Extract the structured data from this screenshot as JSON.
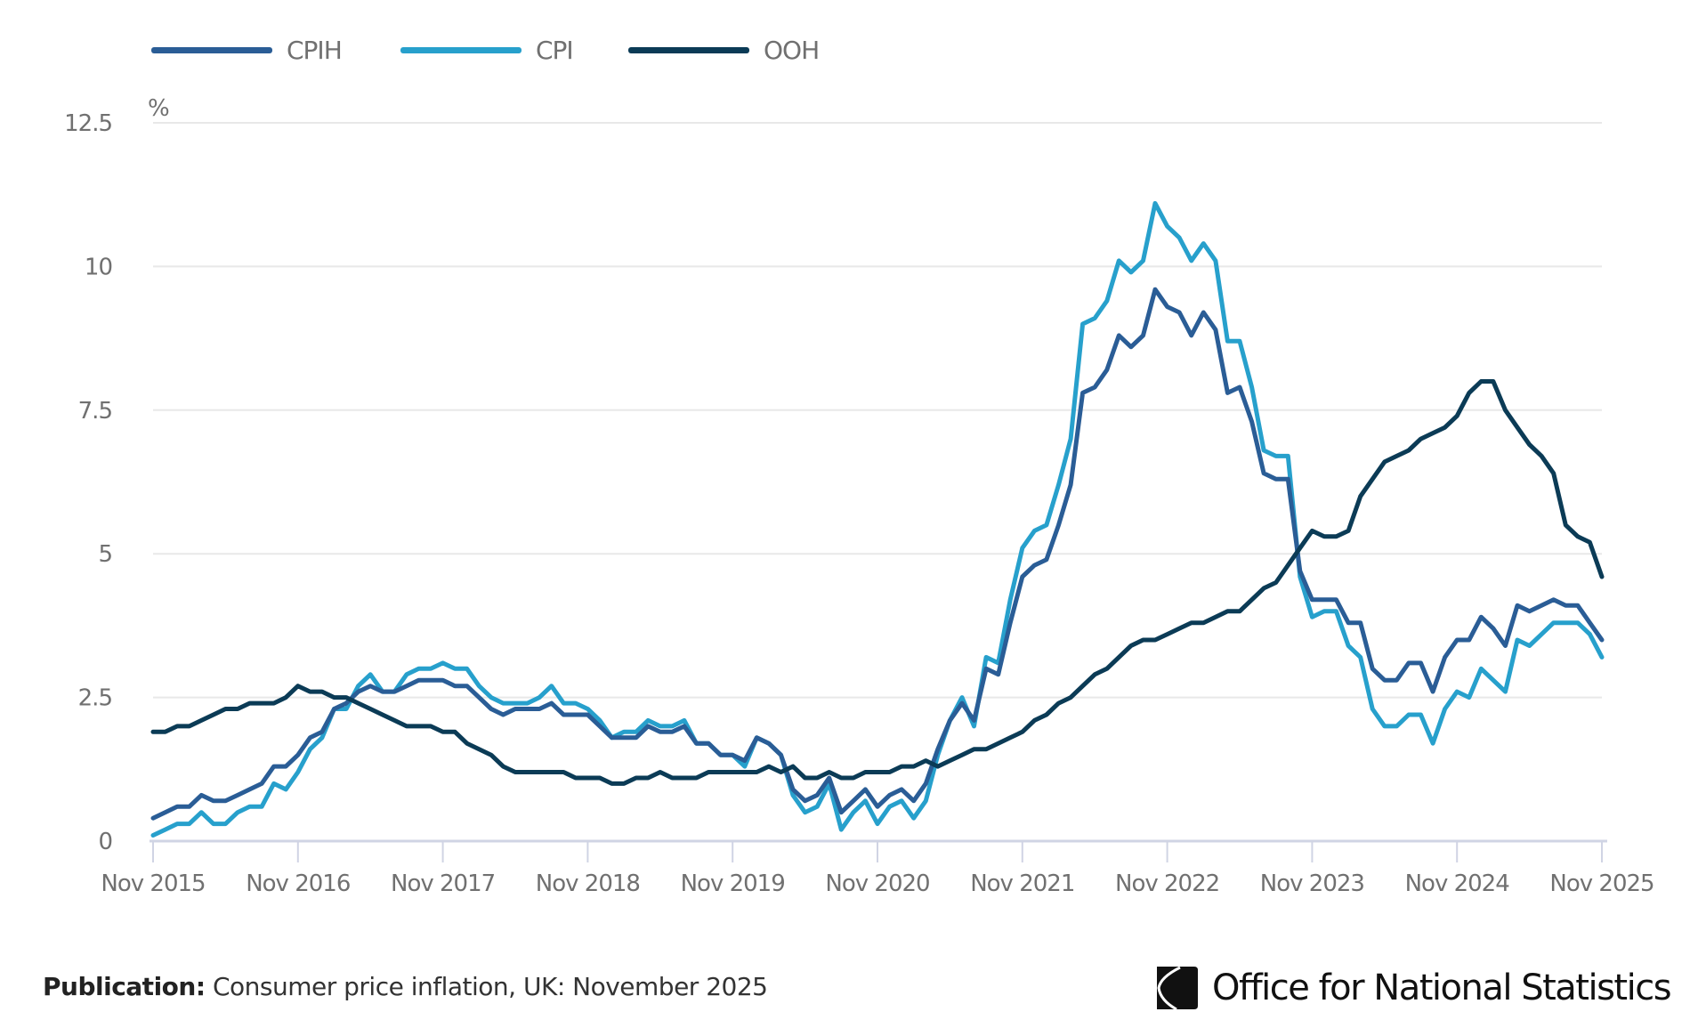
{
  "chart_data": {
    "type": "line",
    "title": "",
    "xlabel": "",
    "ylabel": "%",
    "ylim": [
      0,
      12.5
    ],
    "y_ticks": [
      "0",
      "2.5",
      "5",
      "7.5",
      "10",
      "12.5"
    ],
    "y_tick_values": [
      0,
      2.5,
      5,
      7.5,
      10,
      12.5
    ],
    "x_ticks": [
      "Nov 2015",
      "Nov 2016",
      "Nov 2017",
      "Nov 2018",
      "Nov 2019",
      "Nov 2020",
      "Nov 2021",
      "Nov 2022",
      "Nov 2023",
      "Nov 2024",
      "Nov 2025"
    ],
    "x_range": [
      "2015-11",
      "2025-11"
    ],
    "grid": true,
    "legend_position": "top-left",
    "x": [
      "2015-11",
      "2015-12",
      "2016-01",
      "2016-02",
      "2016-03",
      "2016-04",
      "2016-05",
      "2016-06",
      "2016-07",
      "2016-08",
      "2016-09",
      "2016-10",
      "2016-11",
      "2016-12",
      "2017-01",
      "2017-02",
      "2017-03",
      "2017-04",
      "2017-05",
      "2017-06",
      "2017-07",
      "2017-08",
      "2017-09",
      "2017-10",
      "2017-11",
      "2017-12",
      "2018-01",
      "2018-02",
      "2018-03",
      "2018-04",
      "2018-05",
      "2018-06",
      "2018-07",
      "2018-08",
      "2018-09",
      "2018-10",
      "2018-11",
      "2018-12",
      "2019-01",
      "2019-02",
      "2019-03",
      "2019-04",
      "2019-05",
      "2019-06",
      "2019-07",
      "2019-08",
      "2019-09",
      "2019-10",
      "2019-11",
      "2019-12",
      "2020-01",
      "2020-02",
      "2020-03",
      "2020-04",
      "2020-05",
      "2020-06",
      "2020-07",
      "2020-08",
      "2020-09",
      "2020-10",
      "2020-11",
      "2020-12",
      "2021-01",
      "2021-02",
      "2021-03",
      "2021-04",
      "2021-05",
      "2021-06",
      "2021-07",
      "2021-08",
      "2021-09",
      "2021-10",
      "2021-11",
      "2021-12",
      "2022-01",
      "2022-02",
      "2022-03",
      "2022-04",
      "2022-05",
      "2022-06",
      "2022-07",
      "2022-08",
      "2022-09",
      "2022-10",
      "2022-11",
      "2022-12",
      "2023-01",
      "2023-02",
      "2023-03",
      "2023-04",
      "2023-05",
      "2023-06",
      "2023-07",
      "2023-08",
      "2023-09",
      "2023-10",
      "2023-11",
      "2023-12",
      "2024-01",
      "2024-02",
      "2024-03",
      "2024-04",
      "2024-05",
      "2024-06",
      "2024-07",
      "2024-08",
      "2024-09",
      "2024-10",
      "2024-11",
      "2024-12",
      "2025-01",
      "2025-02",
      "2025-03",
      "2025-04",
      "2025-05",
      "2025-06",
      "2025-07",
      "2025-08",
      "2025-09",
      "2025-10",
      "2025-11"
    ],
    "series": [
      {
        "name": "CPIH",
        "color": "#2a5d96",
        "values": [
          0.4,
          0.5,
          0.6,
          0.6,
          0.8,
          0.7,
          0.7,
          0.8,
          0.9,
          1.0,
          1.3,
          1.3,
          1.5,
          1.8,
          1.9,
          2.3,
          2.4,
          2.6,
          2.7,
          2.6,
          2.6,
          2.7,
          2.8,
          2.8,
          2.8,
          2.7,
          2.7,
          2.5,
          2.3,
          2.2,
          2.3,
          2.3,
          2.3,
          2.4,
          2.2,
          2.2,
          2.2,
          2.0,
          1.8,
          1.8,
          1.8,
          2.0,
          1.9,
          1.9,
          2.0,
          1.7,
          1.7,
          1.5,
          1.5,
          1.4,
          1.8,
          1.7,
          1.5,
          0.9,
          0.7,
          0.8,
          1.1,
          0.5,
          0.7,
          0.9,
          0.6,
          0.8,
          0.9,
          0.7,
          1.0,
          1.6,
          2.1,
          2.4,
          2.1,
          3.0,
          2.9,
          3.8,
          4.6,
          4.8,
          4.9,
          5.5,
          6.2,
          7.8,
          7.9,
          8.2,
          8.8,
          8.6,
          8.8,
          9.6,
          9.3,
          9.2,
          8.8,
          9.2,
          8.9,
          7.8,
          7.9,
          7.3,
          6.4,
          6.3,
          6.3,
          4.7,
          4.2,
          4.2,
          4.2,
          3.8,
          3.8,
          3.0,
          2.8,
          2.8,
          3.1,
          3.1,
          2.6,
          3.2,
          3.5,
          3.5,
          3.9,
          3.7,
          3.4,
          4.1,
          4.0,
          4.1,
          4.2,
          4.1,
          4.1,
          3.8,
          3.5
        ]
      },
      {
        "name": "CPI",
        "color": "#27a0cc",
        "values": [
          0.1,
          0.2,
          0.3,
          0.3,
          0.5,
          0.3,
          0.3,
          0.5,
          0.6,
          0.6,
          1.0,
          0.9,
          1.2,
          1.6,
          1.8,
          2.3,
          2.3,
          2.7,
          2.9,
          2.6,
          2.6,
          2.9,
          3.0,
          3.0,
          3.1,
          3.0,
          3.0,
          2.7,
          2.5,
          2.4,
          2.4,
          2.4,
          2.5,
          2.7,
          2.4,
          2.4,
          2.3,
          2.1,
          1.8,
          1.9,
          1.9,
          2.1,
          2.0,
          2.0,
          2.1,
          1.7,
          1.7,
          1.5,
          1.5,
          1.3,
          1.8,
          1.7,
          1.5,
          0.8,
          0.5,
          0.6,
          1.0,
          0.2,
          0.5,
          0.7,
          0.3,
          0.6,
          0.7,
          0.4,
          0.7,
          1.5,
          2.1,
          2.5,
          2.0,
          3.2,
          3.1,
          4.2,
          5.1,
          5.4,
          5.5,
          6.2,
          7.0,
          9.0,
          9.1,
          9.4,
          10.1,
          9.9,
          10.1,
          11.1,
          10.7,
          10.5,
          10.1,
          10.4,
          10.1,
          8.7,
          8.7,
          7.9,
          6.8,
          6.7,
          6.7,
          4.6,
          3.9,
          4.0,
          4.0,
          3.4,
          3.2,
          2.3,
          2.0,
          2.0,
          2.2,
          2.2,
          1.7,
          2.3,
          2.6,
          2.5,
          3.0,
          2.8,
          2.6,
          3.5,
          3.4,
          3.6,
          3.8,
          3.8,
          3.8,
          3.6,
          3.2
        ]
      },
      {
        "name": "OOH",
        "color": "#0b3b56",
        "values": [
          1.9,
          1.9,
          2.0,
          2.0,
          2.1,
          2.2,
          2.3,
          2.3,
          2.4,
          2.4,
          2.4,
          2.5,
          2.7,
          2.6,
          2.6,
          2.5,
          2.5,
          2.4,
          2.3,
          2.2,
          2.1,
          2.0,
          2.0,
          2.0,
          1.9,
          1.9,
          1.7,
          1.6,
          1.5,
          1.3,
          1.2,
          1.2,
          1.2,
          1.2,
          1.2,
          1.1,
          1.1,
          1.1,
          1.0,
          1.0,
          1.1,
          1.1,
          1.2,
          1.1,
          1.1,
          1.1,
          1.2,
          1.2,
          1.2,
          1.2,
          1.2,
          1.3,
          1.2,
          1.3,
          1.1,
          1.1,
          1.2,
          1.1,
          1.1,
          1.2,
          1.2,
          1.2,
          1.3,
          1.3,
          1.4,
          1.3,
          1.4,
          1.5,
          1.6,
          1.6,
          1.7,
          1.8,
          1.9,
          2.1,
          2.2,
          2.4,
          2.5,
          2.7,
          2.9,
          3.0,
          3.2,
          3.4,
          3.5,
          3.5,
          3.6,
          3.7,
          3.8,
          3.8,
          3.9,
          4.0,
          4.0,
          4.2,
          4.4,
          4.5,
          4.8,
          5.1,
          5.4,
          5.3,
          5.3,
          5.4,
          6.0,
          6.3,
          6.6,
          6.7,
          6.8,
          7.0,
          7.1,
          7.2,
          7.4,
          7.8,
          8.0,
          8.0,
          7.5,
          7.2,
          6.9,
          6.7,
          6.4,
          5.5,
          5.3,
          5.2,
          4.6
        ]
      }
    ]
  },
  "legend": {
    "items": [
      "CPIH",
      "CPI",
      "OOH"
    ]
  },
  "footer": {
    "publication_label": "Publication:",
    "publication_value": "Consumer price inflation, UK: November 2025"
  },
  "logo": {
    "text_light": "Office for",
    "text_bold": "National Statistics"
  }
}
